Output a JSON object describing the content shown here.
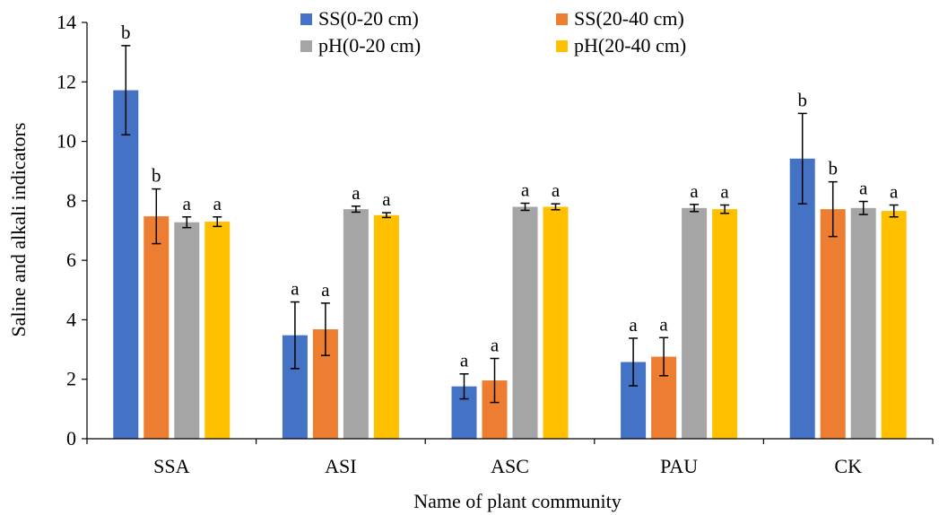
{
  "chart_data": {
    "type": "bar",
    "xlabel": "Name of plant community",
    "ylabel": "Saline and alkali indicators",
    "ylim": [
      0,
      14
    ],
    "yticks": [
      "0",
      "2",
      "4",
      "6",
      "8",
      "10",
      "12",
      "14"
    ],
    "categories": [
      "SSA",
      "ASI",
      "ASC",
      "PAU",
      "CK"
    ],
    "grid": false,
    "legend_position": "top",
    "series": [
      {
        "name": "SS(0-20 cm)",
        "color": "#4472C4",
        "values": [
          11.72,
          3.48,
          1.76,
          2.58,
          9.42
        ],
        "errors": [
          1.5,
          1.12,
          0.42,
          0.8,
          1.52
        ],
        "labels": [
          "b",
          "a",
          "a",
          "a",
          "b"
        ]
      },
      {
        "name": "SS(20-40 cm)",
        "color": "#ED7D31",
        "values": [
          7.48,
          3.68,
          1.96,
          2.76,
          7.72
        ],
        "errors": [
          0.92,
          0.88,
          0.74,
          0.64,
          0.92
        ],
        "labels": [
          "b",
          "a",
          "a",
          "a",
          "b"
        ]
      },
      {
        "name": "pH(0-20 cm)",
        "color": "#A5A5A5",
        "values": [
          7.28,
          7.72,
          7.8,
          7.76,
          7.76
        ],
        "errors": [
          0.18,
          0.1,
          0.12,
          0.12,
          0.22
        ],
        "labels": [
          "a",
          "a",
          "a",
          "a",
          "a"
        ]
      },
      {
        "name": "pH(20-40 cm)",
        "color": "#FFC000",
        "values": [
          7.3,
          7.52,
          7.8,
          7.72,
          7.66
        ],
        "errors": [
          0.16,
          0.08,
          0.1,
          0.14,
          0.2
        ],
        "labels": [
          "a",
          "a",
          "a",
          "a",
          "a"
        ]
      }
    ]
  }
}
